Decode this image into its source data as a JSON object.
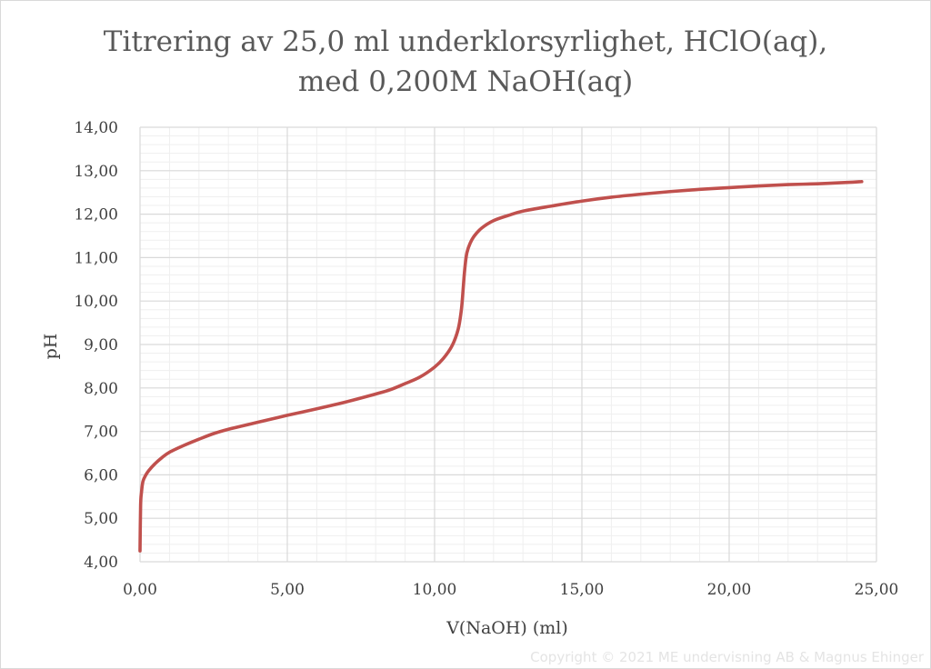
{
  "chart_data": {
    "type": "line",
    "title_line1": "Titrering av 25,0 ml underklorsyrlighet, HClO(aq),",
    "title_line2": "med 0,200M NaOH(aq)",
    "xlabel": "V(NaOH) (ml)",
    "ylabel": "pH",
    "xlim": [
      0,
      25
    ],
    "ylim": [
      4,
      14
    ],
    "x_ticks": [
      0,
      5,
      10,
      15,
      20,
      25
    ],
    "x_tick_labels": [
      "0,00",
      "5,00",
      "10,00",
      "15,00",
      "20,00",
      "25,00"
    ],
    "y_ticks": [
      4,
      5,
      6,
      7,
      8,
      9,
      10,
      11,
      12,
      13,
      14
    ],
    "y_tick_labels": [
      "4,00",
      "5,00",
      "6,00",
      "7,00",
      "8,00",
      "9,00",
      "10,00",
      "11,00",
      "12,00",
      "13,00",
      "14,00"
    ],
    "grid": true,
    "series": [
      {
        "color": "#c0504d",
        "x": [
          0,
          0.02,
          0.05,
          0.1,
          0.2,
          0.3,
          0.5,
          0.75,
          1.0,
          1.5,
          2.0,
          2.5,
          3.0,
          3.5,
          4.0,
          5.0,
          6.0,
          7.0,
          8.0,
          8.5,
          9.0,
          9.5,
          10.0,
          10.3,
          10.6,
          10.8,
          10.9,
          10.95,
          11.0,
          11.05,
          11.1,
          11.2,
          11.35,
          11.6,
          12.0,
          12.5,
          13.0,
          14.0,
          15.0,
          16.0,
          17.0,
          18.0,
          19.0,
          20.0,
          21.0,
          22.0,
          23.0,
          24.0,
          24.5
        ],
        "y": [
          4.25,
          5.3,
          5.6,
          5.85,
          6.0,
          6.1,
          6.25,
          6.4,
          6.52,
          6.68,
          6.82,
          6.95,
          7.05,
          7.13,
          7.21,
          7.37,
          7.52,
          7.68,
          7.86,
          7.96,
          8.1,
          8.25,
          8.48,
          8.68,
          8.98,
          9.35,
          9.75,
          10.1,
          10.55,
          10.9,
          11.12,
          11.32,
          11.5,
          11.68,
          11.85,
          11.97,
          12.07,
          12.19,
          12.3,
          12.39,
          12.46,
          12.52,
          12.57,
          12.61,
          12.65,
          12.68,
          12.7,
          12.73,
          12.75
        ]
      }
    ]
  },
  "watermark": "Copyright © 2021 ME undervisning AB & Magnus Ehinger"
}
